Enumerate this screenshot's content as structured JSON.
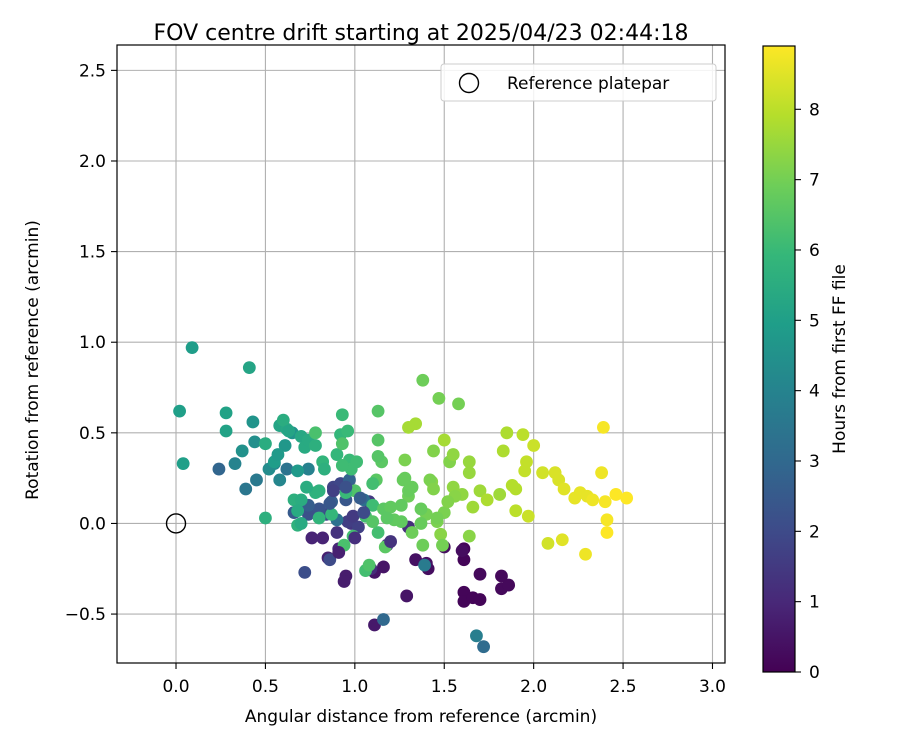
{
  "chart_data": {
    "type": "scatter",
    "title": "FOV centre drift starting at 2025/04/23 02:44:18",
    "xlabel": "Angular distance from reference (arcmin)",
    "ylabel": "Rotation from reference (arcmin)",
    "xlim": [
      -0.33,
      3.07
    ],
    "ylim": [
      -0.77,
      2.64
    ],
    "xticks": [
      0.0,
      0.5,
      1.0,
      1.5,
      2.0,
      2.5,
      3.0
    ],
    "xtick_labels": [
      "0.0",
      "0.5",
      "1.0",
      "1.5",
      "2.0",
      "2.5",
      "3.0"
    ],
    "yticks": [
      -0.5,
      0.0,
      0.5,
      1.0,
      1.5,
      2.0,
      2.5
    ],
    "ytick_labels": [
      "−0.5",
      "0.0",
      "0.5",
      "1.0",
      "1.5",
      "2.0",
      "2.5"
    ],
    "grid": true,
    "legend": {
      "position": "top-right",
      "entries": [
        "Reference platepar"
      ]
    },
    "reference_point": {
      "x": 0.0,
      "y": 0.0,
      "marker": "open-circle"
    },
    "colorbar": {
      "label": "Hours from first FF file",
      "colormap": "viridis",
      "range": [
        0,
        8.9
      ],
      "ticks": [
        0,
        1,
        2,
        3,
        4,
        5,
        6,
        7,
        8
      ],
      "tick_labels": [
        "0",
        "1",
        "2",
        "3",
        "4",
        "5",
        "6",
        "7",
        "8"
      ]
    },
    "colormap_stops": [
      "#440154",
      "#482878",
      "#3e4a89",
      "#31688e",
      "#26828e",
      "#1f9e89",
      "#35b779",
      "#6ece58",
      "#b5de2b",
      "#fde725"
    ],
    "points": [
      {
        "x": 1.61,
        "y": -0.14,
        "t": 0.1
      },
      {
        "x": 1.61,
        "y": -0.2,
        "t": 0.1
      },
      {
        "x": 1.61,
        "y": -0.38,
        "t": 0.1
      },
      {
        "x": 1.61,
        "y": -0.43,
        "t": 0.1
      },
      {
        "x": 1.66,
        "y": -0.41,
        "t": 0.1
      },
      {
        "x": 1.7,
        "y": -0.42,
        "t": 0.1
      },
      {
        "x": 1.7,
        "y": -0.28,
        "t": 0.2
      },
      {
        "x": 1.82,
        "y": -0.29,
        "t": 0.2
      },
      {
        "x": 1.82,
        "y": -0.36,
        "t": 0.2
      },
      {
        "x": 1.86,
        "y": -0.34,
        "t": 0.2
      },
      {
        "x": 1.6,
        "y": -0.15,
        "t": 0.3
      },
      {
        "x": 1.5,
        "y": -0.13,
        "t": 0.3
      },
      {
        "x": 1.41,
        "y": -0.25,
        "t": 0.3
      },
      {
        "x": 1.4,
        "y": -0.22,
        "t": 0.4
      },
      {
        "x": 1.34,
        "y": -0.2,
        "t": 0.4
      },
      {
        "x": 1.29,
        "y": -0.4,
        "t": 0.5
      },
      {
        "x": 1.16,
        "y": -0.24,
        "t": 0.5
      },
      {
        "x": 1.11,
        "y": -0.27,
        "t": 0.5
      },
      {
        "x": 1.11,
        "y": -0.56,
        "t": 0.6
      },
      {
        "x": 0.95,
        "y": -0.29,
        "t": 0.7
      },
      {
        "x": 0.94,
        "y": -0.32,
        "t": 0.7
      },
      {
        "x": 0.85,
        "y": -0.19,
        "t": 0.8
      },
      {
        "x": 0.82,
        "y": -0.08,
        "t": 0.9
      },
      {
        "x": 0.76,
        "y": -0.08,
        "t": 0.9
      },
      {
        "x": 0.91,
        "y": -0.14,
        "t": 1.0
      },
      {
        "x": 1.09,
        "y": -0.25,
        "t": 1.1
      },
      {
        "x": 1.3,
        "y": -0.02,
        "t": 1.2
      },
      {
        "x": 1.18,
        "y": -0.12,
        "t": 1.3
      },
      {
        "x": 0.9,
        "y": -0.05,
        "t": 1.3
      },
      {
        "x": 0.98,
        "y": 0.0,
        "t": 1.4
      },
      {
        "x": 1.08,
        "y": 0.12,
        "t": 1.5
      },
      {
        "x": 0.96,
        "y": 0.01,
        "t": 1.6
      },
      {
        "x": 1.02,
        "y": -0.02,
        "t": 1.7
      },
      {
        "x": 0.88,
        "y": 0.2,
        "t": 1.8
      },
      {
        "x": 0.92,
        "y": 0.22,
        "t": 1.9
      },
      {
        "x": 0.84,
        "y": 0.05,
        "t": 1.9
      },
      {
        "x": 0.86,
        "y": -0.2,
        "t": 2.0
      },
      {
        "x": 0.72,
        "y": -0.27,
        "t": 2.1
      },
      {
        "x": 0.74,
        "y": 0.05,
        "t": 2.2
      },
      {
        "x": 0.8,
        "y": 0.08,
        "t": 2.3
      },
      {
        "x": 0.95,
        "y": 0.13,
        "t": 2.4
      },
      {
        "x": 0.66,
        "y": 0.06,
        "t": 2.5
      },
      {
        "x": 0.74,
        "y": 0.1,
        "t": 2.6
      },
      {
        "x": 0.87,
        "y": 0.12,
        "t": 2.7
      },
      {
        "x": 0.97,
        "y": 0.24,
        "t": 2.8
      },
      {
        "x": 0.24,
        "y": 0.3,
        "t": 2.9
      },
      {
        "x": 1.16,
        "y": -0.53,
        "t": 3.0
      },
      {
        "x": 1.72,
        "y": -0.68,
        "t": 3.1
      },
      {
        "x": 1.05,
        "y": 0.13,
        "t": 3.2
      },
      {
        "x": 0.9,
        "y": 0.02,
        "t": 3.3
      },
      {
        "x": 0.62,
        "y": 0.3,
        "t": 3.4
      },
      {
        "x": 0.39,
        "y": 0.19,
        "t": 3.5
      },
      {
        "x": 0.45,
        "y": 0.24,
        "t": 3.6
      },
      {
        "x": 1.39,
        "y": -0.23,
        "t": 3.7
      },
      {
        "x": 1.68,
        "y": -0.62,
        "t": 3.8
      },
      {
        "x": 0.74,
        "y": 0.3,
        "t": 3.9
      },
      {
        "x": 0.33,
        "y": 0.33,
        "t": 4.0
      },
      {
        "x": 0.58,
        "y": 0.24,
        "t": 4.1
      },
      {
        "x": 0.55,
        "y": 0.33,
        "t": 4.2
      },
      {
        "x": 0.52,
        "y": 0.3,
        "t": 4.3
      },
      {
        "x": 0.44,
        "y": 0.45,
        "t": 4.4
      },
      {
        "x": 0.37,
        "y": 0.4,
        "t": 4.5
      },
      {
        "x": 0.43,
        "y": 0.56,
        "t": 4.6
      },
      {
        "x": 0.65,
        "y": 0.5,
        "t": 4.6
      },
      {
        "x": 0.61,
        "y": 0.43,
        "t": 4.7
      },
      {
        "x": 0.68,
        "y": 0.29,
        "t": 4.8
      },
      {
        "x": 0.09,
        "y": 0.97,
        "t": 4.9
      },
      {
        "x": 0.02,
        "y": 0.62,
        "t": 5.0
      },
      {
        "x": 0.04,
        "y": 0.33,
        "t": 5.0
      },
      {
        "x": 0.28,
        "y": 0.61,
        "t": 5.1
      },
      {
        "x": 0.28,
        "y": 0.51,
        "t": 5.1
      },
      {
        "x": 0.41,
        "y": 0.86,
        "t": 5.2
      },
      {
        "x": 0.58,
        "y": 0.54,
        "t": 5.2
      },
      {
        "x": 0.62,
        "y": 0.52,
        "t": 5.3
      },
      {
        "x": 0.7,
        "y": 0.48,
        "t": 5.3
      },
      {
        "x": 0.72,
        "y": 0.42,
        "t": 5.4
      },
      {
        "x": 0.74,
        "y": 0.46,
        "t": 5.4
      },
      {
        "x": 0.6,
        "y": 0.57,
        "t": 5.5
      },
      {
        "x": 0.5,
        "y": 0.44,
        "t": 5.5
      },
      {
        "x": 0.5,
        "y": 0.03,
        "t": 5.6
      },
      {
        "x": 0.66,
        "y": 0.13,
        "t": 5.6
      },
      {
        "x": 0.68,
        "y": -0.01,
        "t": 5.7
      },
      {
        "x": 0.78,
        "y": 0.17,
        "t": 5.7
      },
      {
        "x": 0.8,
        "y": 0.03,
        "t": 5.8
      },
      {
        "x": 0.82,
        "y": 0.34,
        "t": 5.8
      },
      {
        "x": 0.9,
        "y": 0.38,
        "t": 5.9
      },
      {
        "x": 0.92,
        "y": 0.49,
        "t": 5.9
      },
      {
        "x": 0.93,
        "y": 0.6,
        "t": 6.0
      },
      {
        "x": 0.97,
        "y": 0.35,
        "t": 6.0
      },
      {
        "x": 0.98,
        "y": 0.3,
        "t": 6.1
      },
      {
        "x": 1.1,
        "y": 0.1,
        "t": 6.1
      },
      {
        "x": 1.13,
        "y": -0.05,
        "t": 6.2
      },
      {
        "x": 1.06,
        "y": -0.26,
        "t": 6.2
      },
      {
        "x": 0.94,
        "y": -0.12,
        "t": 6.3
      },
      {
        "x": 0.78,
        "y": 0.5,
        "t": 6.3
      },
      {
        "x": 0.93,
        "y": 0.44,
        "t": 6.4
      },
      {
        "x": 1.0,
        "y": 0.18,
        "t": 6.4
      },
      {
        "x": 1.13,
        "y": 0.46,
        "t": 6.5
      },
      {
        "x": 1.13,
        "y": 0.62,
        "t": 6.5
      },
      {
        "x": 1.17,
        "y": -0.13,
        "t": 6.6
      },
      {
        "x": 1.16,
        "y": 0.08,
        "t": 6.6
      },
      {
        "x": 1.2,
        "y": 0.09,
        "t": 6.7
      },
      {
        "x": 1.26,
        "y": 0.01,
        "t": 6.7
      },
      {
        "x": 1.28,
        "y": 0.25,
        "t": 6.8
      },
      {
        "x": 1.32,
        "y": 0.2,
        "t": 6.8
      },
      {
        "x": 1.38,
        "y": -0.12,
        "t": 6.9
      },
      {
        "x": 1.38,
        "y": 0.79,
        "t": 6.9
      },
      {
        "x": 1.47,
        "y": 0.69,
        "t": 7.0
      },
      {
        "x": 1.58,
        "y": 0.66,
        "t": 7.0
      },
      {
        "x": 1.46,
        "y": 0.01,
        "t": 7.1
      },
      {
        "x": 1.5,
        "y": 0.06,
        "t": 7.1
      },
      {
        "x": 1.53,
        "y": 0.34,
        "t": 7.2
      },
      {
        "x": 1.44,
        "y": 0.4,
        "t": 7.2
      },
      {
        "x": 1.43,
        "y": 0.23,
        "t": 7.3
      },
      {
        "x": 1.48,
        "y": -0.06,
        "t": 7.3
      },
      {
        "x": 1.55,
        "y": 0.2,
        "t": 7.4
      },
      {
        "x": 1.6,
        "y": 0.16,
        "t": 7.4
      },
      {
        "x": 1.64,
        "y": 0.34,
        "t": 7.5
      },
      {
        "x": 1.64,
        "y": 0.28,
        "t": 7.5
      },
      {
        "x": 1.66,
        "y": 0.09,
        "t": 7.6
      },
      {
        "x": 1.7,
        "y": 0.18,
        "t": 7.6
      },
      {
        "x": 1.34,
        "y": 0.55,
        "t": 7.7
      },
      {
        "x": 1.3,
        "y": 0.53,
        "t": 7.7
      },
      {
        "x": 1.5,
        "y": 0.46,
        "t": 7.7
      },
      {
        "x": 1.83,
        "y": 0.4,
        "t": 7.8
      },
      {
        "x": 1.85,
        "y": 0.5,
        "t": 7.8
      },
      {
        "x": 1.88,
        "y": 0.21,
        "t": 7.9
      },
      {
        "x": 1.9,
        "y": 0.19,
        "t": 7.9
      },
      {
        "x": 1.9,
        "y": 0.07,
        "t": 8.0
      },
      {
        "x": 1.94,
        "y": 0.49,
        "t": 8.0
      },
      {
        "x": 1.96,
        "y": 0.34,
        "t": 8.1
      },
      {
        "x": 1.95,
        "y": 0.29,
        "t": 8.1
      },
      {
        "x": 2.0,
        "y": 0.43,
        "t": 8.2
      },
      {
        "x": 2.05,
        "y": 0.28,
        "t": 8.3
      },
      {
        "x": 2.08,
        "y": -0.11,
        "t": 8.3
      },
      {
        "x": 2.12,
        "y": 0.28,
        "t": 8.4
      },
      {
        "x": 2.14,
        "y": 0.24,
        "t": 8.4
      },
      {
        "x": 2.16,
        "y": -0.09,
        "t": 8.5
      },
      {
        "x": 2.17,
        "y": 0.19,
        "t": 8.5
      },
      {
        "x": 2.23,
        "y": 0.14,
        "t": 8.6
      },
      {
        "x": 2.26,
        "y": 0.17,
        "t": 8.6
      },
      {
        "x": 2.3,
        "y": 0.15,
        "t": 8.6
      },
      {
        "x": 2.29,
        "y": -0.17,
        "t": 8.7
      },
      {
        "x": 2.33,
        "y": 0.13,
        "t": 8.7
      },
      {
        "x": 2.38,
        "y": 0.28,
        "t": 8.7
      },
      {
        "x": 2.39,
        "y": 0.53,
        "t": 8.8
      },
      {
        "x": 2.4,
        "y": 0.12,
        "t": 8.8
      },
      {
        "x": 2.41,
        "y": 0.02,
        "t": 8.8
      },
      {
        "x": 2.41,
        "y": -0.05,
        "t": 8.9
      },
      {
        "x": 2.46,
        "y": 0.16,
        "t": 8.9
      },
      {
        "x": 2.52,
        "y": 0.14,
        "t": 8.9
      },
      {
        "x": 1.97,
        "y": 0.04,
        "t": 8.2
      },
      {
        "x": 1.56,
        "y": 0.15,
        "t": 7.3
      },
      {
        "x": 1.52,
        "y": 0.12,
        "t": 7.2
      },
      {
        "x": 1.4,
        "y": 0.05,
        "t": 7.0
      },
      {
        "x": 1.3,
        "y": 0.15,
        "t": 6.9
      },
      {
        "x": 1.32,
        "y": -0.05,
        "t": 6.9
      },
      {
        "x": 1.26,
        "y": 0.1,
        "t": 6.7
      },
      {
        "x": 1.12,
        "y": 0.24,
        "t": 6.6
      },
      {
        "x": 1.15,
        "y": 0.34,
        "t": 6.6
      },
      {
        "x": 1.13,
        "y": 0.37,
        "t": 6.5
      },
      {
        "x": 1.22,
        "y": 0.02,
        "t": 6.7
      },
      {
        "x": 1.37,
        "y": 0.08,
        "t": 6.8
      },
      {
        "x": 1.74,
        "y": 0.13,
        "t": 7.8
      },
      {
        "x": 1.81,
        "y": 0.16,
        "t": 7.6
      },
      {
        "x": 1.55,
        "y": 0.38,
        "t": 7.4
      },
      {
        "x": 1.28,
        "y": 0.35,
        "t": 7.1
      },
      {
        "x": 1.46,
        "y": 0.03,
        "t": 7.0
      },
      {
        "x": 1.06,
        "y": 0.04,
        "t": 6.2
      },
      {
        "x": 0.99,
        "y": -0.07,
        "t": 6.2
      },
      {
        "x": 0.93,
        "y": 0.32,
        "t": 6.1
      },
      {
        "x": 0.95,
        "y": 0.17,
        "t": 6.0
      },
      {
        "x": 0.96,
        "y": 0.51,
        "t": 6.0
      },
      {
        "x": 1.01,
        "y": 0.34,
        "t": 6.1
      },
      {
        "x": 1.1,
        "y": 0.22,
        "t": 6.2
      },
      {
        "x": 0.87,
        "y": 0.05,
        "t": 5.9
      },
      {
        "x": 0.8,
        "y": 0.18,
        "t": 5.7
      },
      {
        "x": 0.78,
        "y": 0.43,
        "t": 5.6
      },
      {
        "x": 0.83,
        "y": 0.3,
        "t": 5.6
      },
      {
        "x": 0.73,
        "y": 0.2,
        "t": 5.5
      },
      {
        "x": 0.63,
        "y": 0.51,
        "t": 5.2
      },
      {
        "x": 0.7,
        "y": 0.13,
        "t": 5.5
      },
      {
        "x": 0.68,
        "y": 0.07,
        "t": 5.4
      },
      {
        "x": 0.7,
        "y": 0.0,
        "t": 5.4
      },
      {
        "x": 0.55,
        "y": 0.34,
        "t": 4.9
      },
      {
        "x": 0.57,
        "y": 0.38,
        "t": 4.8
      },
      {
        "x": 1.27,
        "y": 0.24,
        "t": 6.8
      },
      {
        "x": 1.1,
        "y": 0.01,
        "t": 6.5
      },
      {
        "x": 1.08,
        "y": -0.23,
        "t": 6.4
      },
      {
        "x": 1.18,
        "y": 0.03,
        "t": 6.6
      },
      {
        "x": 1.37,
        "y": 0.0,
        "t": 6.8
      },
      {
        "x": 1.49,
        "y": -0.12,
        "t": 7.0
      },
      {
        "x": 1.64,
        "y": -0.07,
        "t": 7.3
      },
      {
        "x": 1.3,
        "y": 0.18,
        "t": 6.8
      },
      {
        "x": 1.42,
        "y": 0.24,
        "t": 7.1
      },
      {
        "x": 1.44,
        "y": 0.19,
        "t": 7.2
      },
      {
        "x": 0.99,
        "y": 0.04,
        "t": 1.5
      },
      {
        "x": 1.03,
        "y": 0.14,
        "t": 2.6
      },
      {
        "x": 0.86,
        "y": 0.11,
        "t": 2.4
      },
      {
        "x": 1.0,
        "y": -0.08,
        "t": 1.2
      },
      {
        "x": 1.2,
        "y": -0.1,
        "t": 1.3
      },
      {
        "x": 1.05,
        "y": 0.06,
        "t": 2.0
      },
      {
        "x": 0.95,
        "y": 0.2,
        "t": 2.2
      },
      {
        "x": 0.88,
        "y": 0.18,
        "t": 1.7
      },
      {
        "x": 0.91,
        "y": -0.16,
        "t": 0.8
      }
    ]
  }
}
